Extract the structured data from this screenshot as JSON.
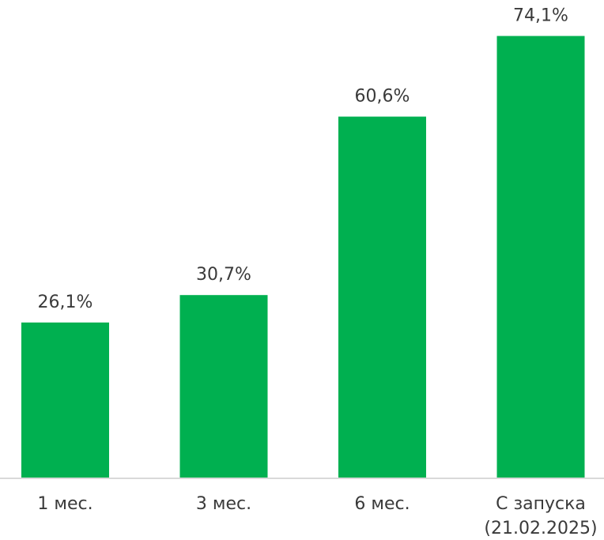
{
  "chart_data": {
    "type": "bar",
    "categories": [
      "1 мес.",
      "3 мес.",
      "6 мес.",
      "С запуска (21.02.2025)"
    ],
    "category_lines": [
      [
        "1 мес."
      ],
      [
        "3 мес."
      ],
      [
        "6 мес."
      ],
      [
        "С запуска",
        "(21.02.2025)"
      ]
    ],
    "values": [
      26.1,
      30.7,
      60.6,
      74.1
    ],
    "value_labels": [
      "26,1%",
      "30,7%",
      "60,6%",
      "74,1%"
    ],
    "ylim": [
      0,
      80
    ],
    "grid": false,
    "legend": "none",
    "bar_color": "#00b050",
    "axis_color": "#d9d9d9"
  }
}
